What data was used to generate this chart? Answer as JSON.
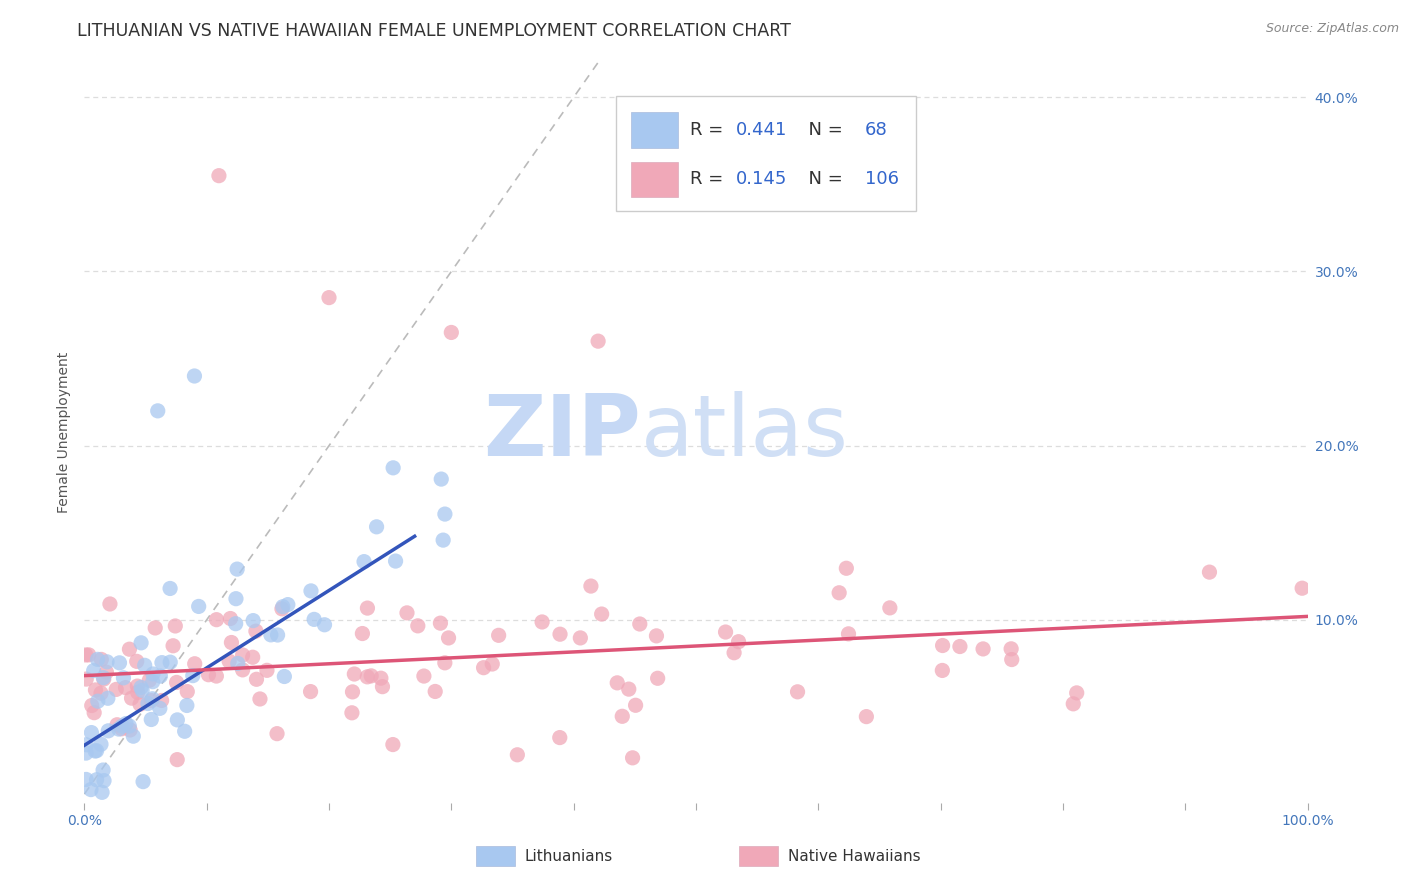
{
  "title": "LITHUANIAN VS NATIVE HAWAIIAN FEMALE UNEMPLOYMENT CORRELATION CHART",
  "source": "Source: ZipAtlas.com",
  "ylabel": "Female Unemployment",
  "xlim": [
    0,
    1.0
  ],
  "ylim": [
    -0.005,
    0.42
  ],
  "ytick_right_labels": [
    "40.0%",
    "30.0%",
    "20.0%",
    "10.0%"
  ],
  "ytick_right_values": [
    0.4,
    0.3,
    0.2,
    0.1
  ],
  "ytick_left_values": [
    0.1,
    0.2,
    0.3,
    0.4
  ],
  "watermark_zip": "ZIP",
  "watermark_atlas": "atlas",
  "watermark_color": "#c5d8f5",
  "legend_R1": "0.441",
  "legend_N1": "68",
  "legend_R2": "0.145",
  "legend_N2": "106",
  "legend_text_color": "#3366cc",
  "legend_label_color": "#333333",
  "color_lit": "#a8c8f0",
  "color_haw": "#f0a8b8",
  "trend_lit_color": "#3355bb",
  "trend_haw_color": "#dd5577",
  "bg_color": "#ffffff",
  "grid_color": "#dddddd",
  "diag_color": "#bbbbbb",
  "title_fontsize": 12.5,
  "axis_label_fontsize": 10,
  "tick_fontsize": 10,
  "legend_fontsize": 13,
  "bottom_legend_label1": "Lithuanians",
  "bottom_legend_label2": "Native Hawaiians"
}
